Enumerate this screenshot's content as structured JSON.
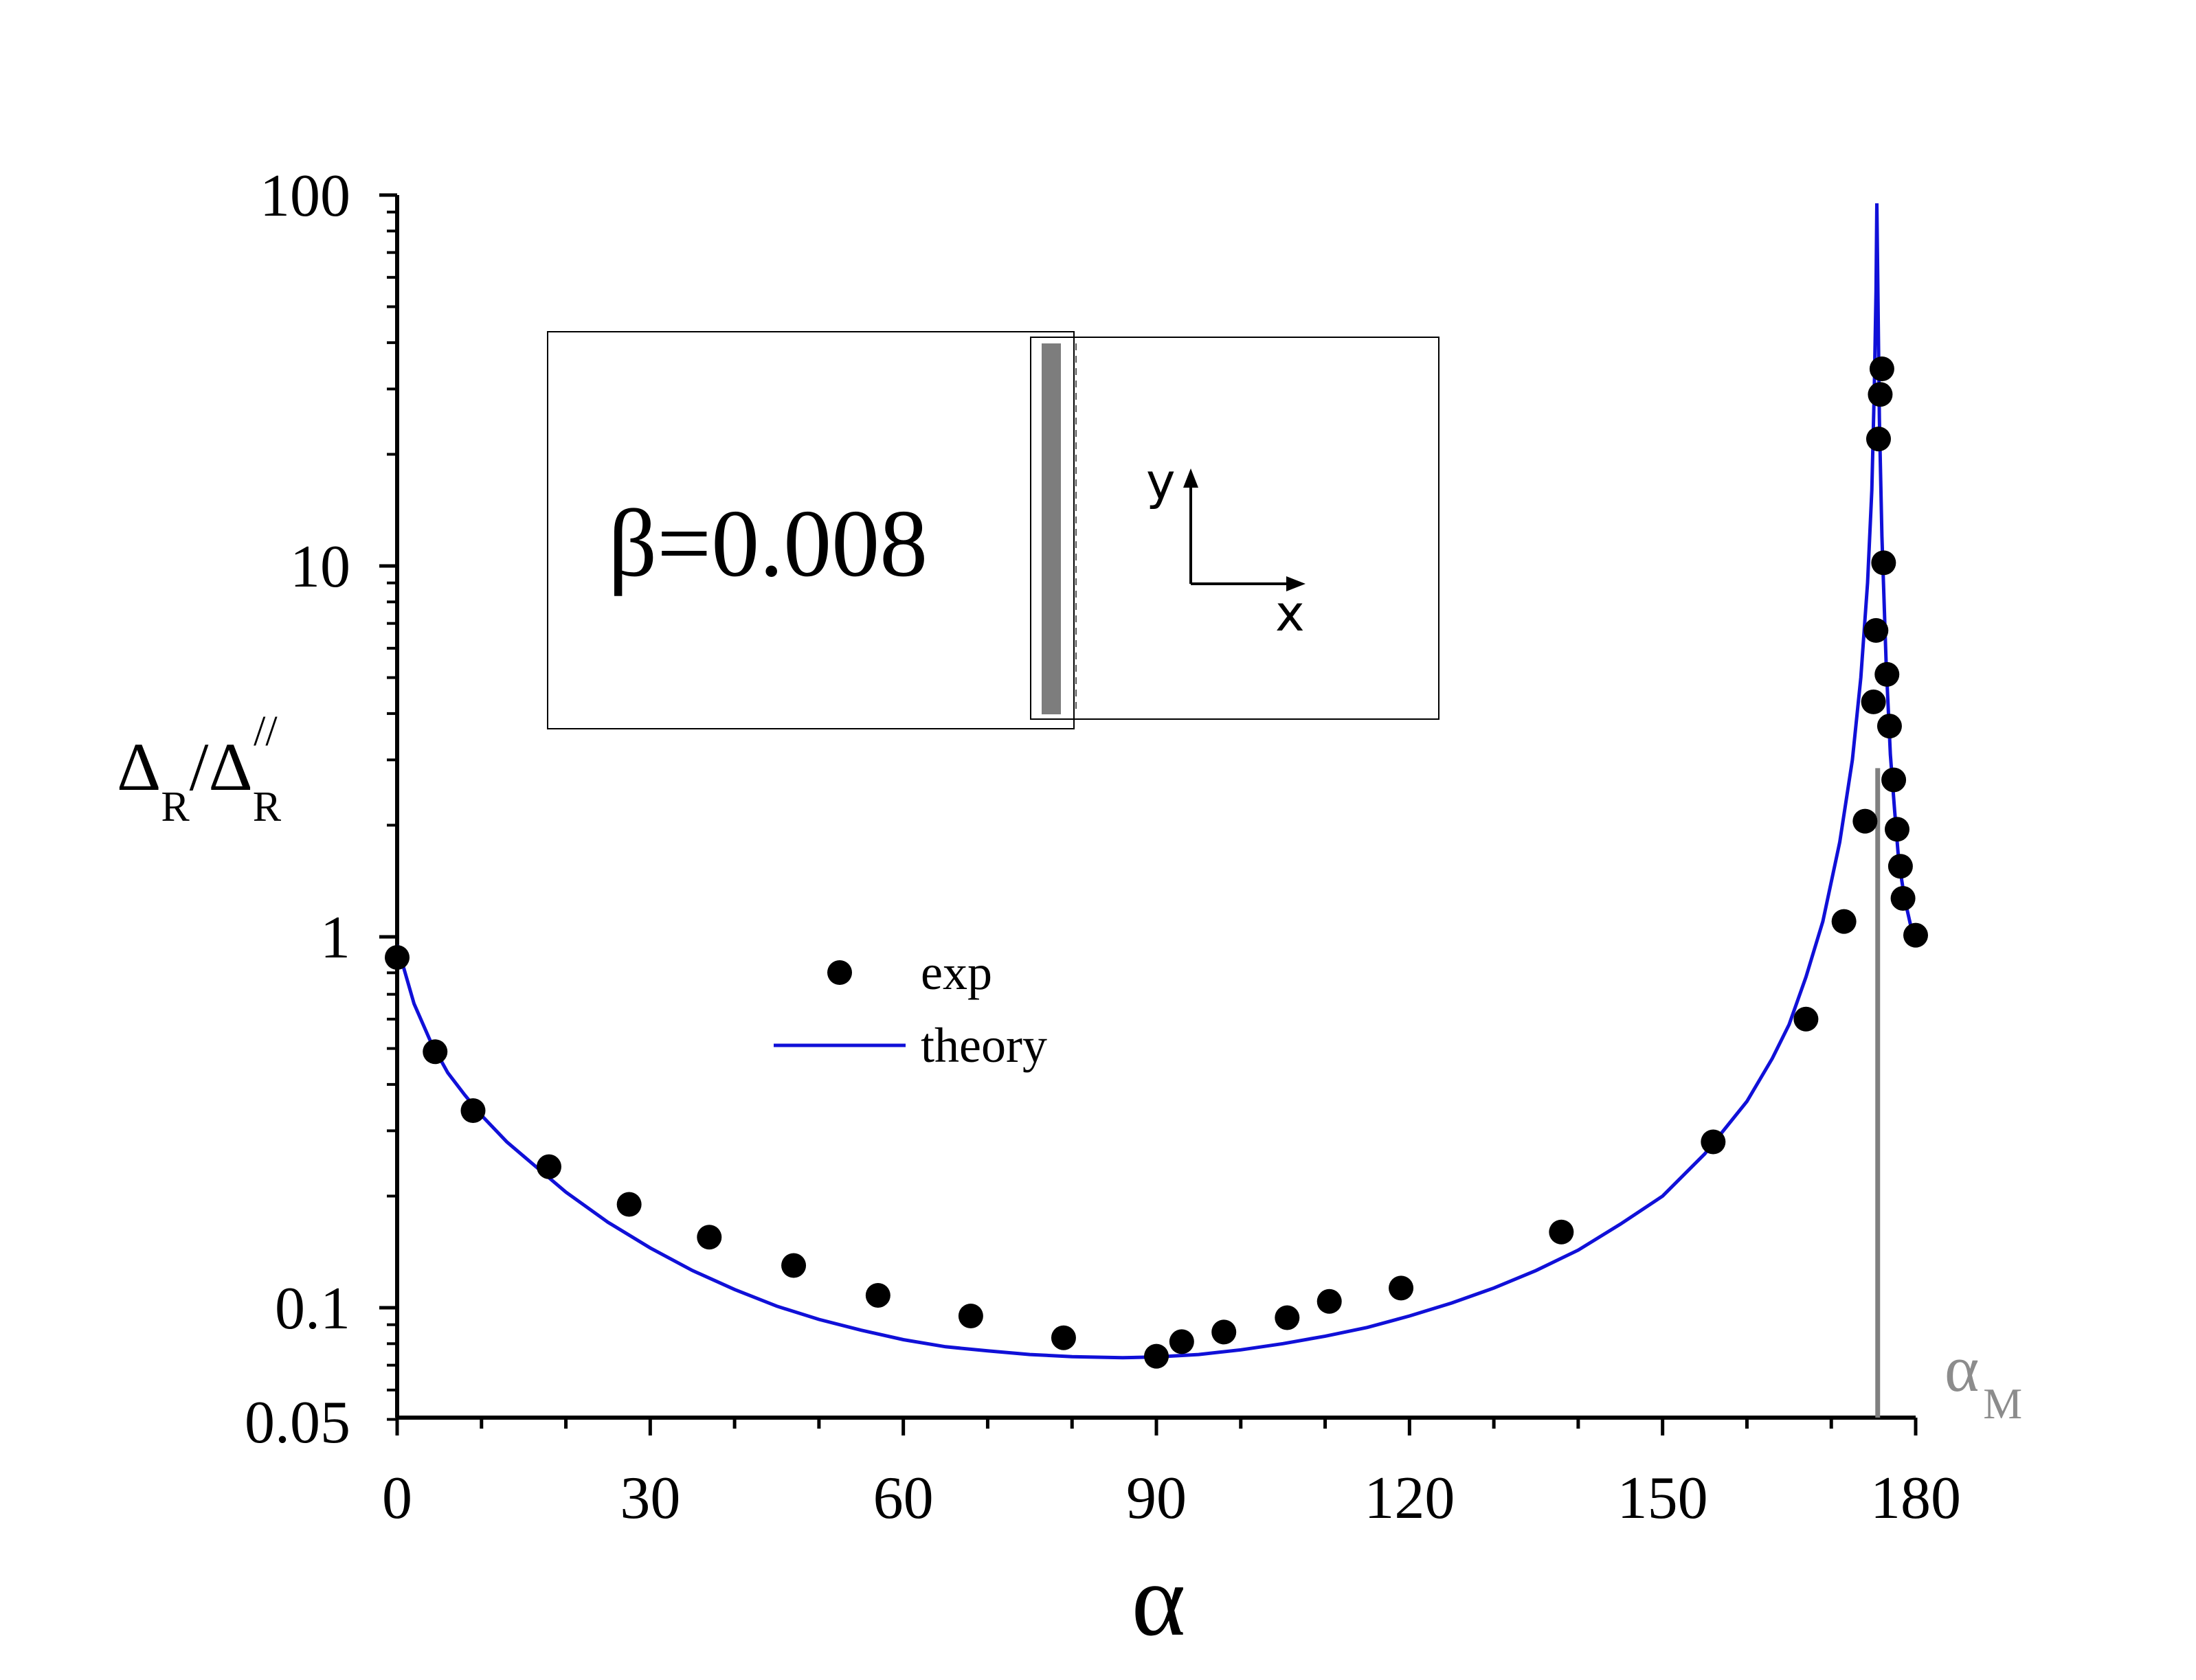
{
  "chart_data": {
    "type": "scatter",
    "title": "",
    "xlabel": "α",
    "ylabel": {
      "text_main": "Δ",
      "sub": "R",
      "slash": "/",
      "text_den": "Δ",
      "den_sub": "R",
      "den_sup": "//"
    },
    "xlim": [
      0,
      180
    ],
    "ylim": [
      0.05,
      100
    ],
    "yscale": "log",
    "x_ticks": [
      0,
      30,
      60,
      90,
      120,
      150,
      180
    ],
    "x_tick_labels": [
      "0",
      "30",
      "60",
      "90",
      "120",
      "150",
      "180"
    ],
    "y_ticks": [
      0.05,
      0.1,
      1,
      10,
      100
    ],
    "y_tick_labels": [
      "0.05",
      "0.1",
      "1",
      "10",
      "100"
    ],
    "grid": false,
    "legend": {
      "position": "lower-left",
      "entries": [
        {
          "label": "exp",
          "marker": "circle",
          "color": "#000000"
        },
        {
          "label": "theory",
          "marker": "line",
          "color": "#1010d8"
        }
      ]
    },
    "series": [
      {
        "name": "exp",
        "kind": "scatter",
        "color": "#000000",
        "points": [
          [
            0,
            0.88
          ],
          [
            4.5,
            0.49
          ],
          [
            9,
            0.34
          ],
          [
            18,
            0.24
          ],
          [
            27.5,
            0.19
          ],
          [
            37,
            0.155
          ],
          [
            47,
            0.13
          ],
          [
            57,
            0.108
          ],
          [
            68,
            0.095
          ],
          [
            79,
            0.083
          ],
          [
            90,
            0.074
          ],
          [
            93,
            0.081
          ],
          [
            98,
            0.086
          ],
          [
            105.5,
            0.094
          ],
          [
            110.5,
            0.104
          ],
          [
            119,
            0.113
          ],
          [
            138,
            0.16
          ],
          [
            156,
            0.28
          ],
          [
            167,
            0.6
          ],
          [
            171.5,
            1.1
          ],
          [
            174,
            2.05
          ],
          [
            175,
            4.3
          ],
          [
            175.3,
            6.7
          ],
          [
            175.6,
            22
          ],
          [
            175.8,
            29
          ],
          [
            176,
            34
          ],
          [
            176.2,
            10.2
          ],
          [
            176.6,
            5.1
          ],
          [
            176.9,
            3.7
          ],
          [
            177.4,
            2.65
          ],
          [
            177.8,
            1.95
          ],
          [
            178.2,
            1.55
          ],
          [
            178.5,
            1.27
          ],
          [
            180,
            1.01
          ]
        ]
      },
      {
        "name": "theory",
        "kind": "line",
        "color": "#1010d8",
        "points": [
          [
            0,
            0.95
          ],
          [
            2,
            0.66
          ],
          [
            4,
            0.52
          ],
          [
            6,
            0.43
          ],
          [
            8,
            0.375
          ],
          [
            10,
            0.33
          ],
          [
            13,
            0.28
          ],
          [
            16,
            0.245
          ],
          [
            20,
            0.205
          ],
          [
            25,
            0.17
          ],
          [
            30,
            0.145
          ],
          [
            35,
            0.126
          ],
          [
            40,
            0.112
          ],
          [
            45,
            0.101
          ],
          [
            50,
            0.093
          ],
          [
            55,
            0.087
          ],
          [
            60,
            0.082
          ],
          [
            65,
            0.0785
          ],
          [
            70,
            0.0765
          ],
          [
            75,
            0.0748
          ],
          [
            80,
            0.0738
          ],
          [
            86,
            0.0733
          ],
          [
            90,
            0.0737
          ],
          [
            95,
            0.0748
          ],
          [
            100,
            0.077
          ],
          [
            105,
            0.08
          ],
          [
            110,
            0.0838
          ],
          [
            115,
            0.0885
          ],
          [
            120,
            0.095
          ],
          [
            125,
            0.103
          ],
          [
            130,
            0.113
          ],
          [
            135,
            0.126
          ],
          [
            140,
            0.143
          ],
          [
            145,
            0.168
          ],
          [
            150,
            0.2
          ],
          [
            155,
            0.26
          ],
          [
            160,
            0.36
          ],
          [
            163,
            0.47
          ],
          [
            165,
            0.58
          ],
          [
            167,
            0.78
          ],
          [
            169,
            1.1
          ],
          [
            171,
            1.8
          ],
          [
            172.5,
            3.0
          ],
          [
            173.5,
            5.0
          ],
          [
            174.3,
            9.0
          ],
          [
            174.8,
            16
          ],
          [
            175.1,
            30
          ],
          [
            175.3,
            55
          ],
          [
            175.4,
            95
          ],
          [
            175.5,
            60
          ],
          [
            175.7,
            25
          ],
          [
            176,
            12
          ],
          [
            176.5,
            5.5
          ],
          [
            177,
            3.1
          ],
          [
            177.5,
            2.2
          ],
          [
            178,
            1.6
          ],
          [
            178.5,
            1.35
          ],
          [
            179,
            1.18
          ],
          [
            179.5,
            1.05
          ],
          [
            180,
            0.99
          ]
        ]
      }
    ],
    "annotations": {
      "alpha_m_line": {
        "x": 175.5,
        "y_top": 2.85,
        "color": "#808080"
      },
      "alpha_m_label": {
        "main": "α",
        "sub": "M"
      },
      "inset": {
        "beta_text": "β=0.008",
        "axis_y": "y",
        "axis_x": "x"
      }
    }
  }
}
